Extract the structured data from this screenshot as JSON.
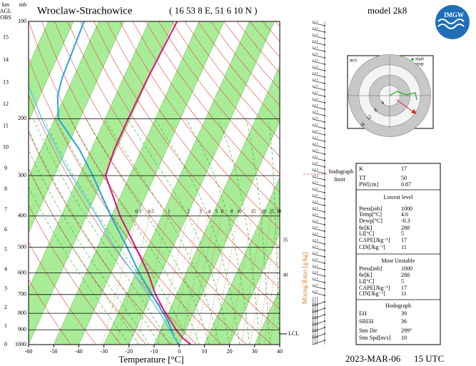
{
  "header": {
    "station": "Wroclaw-Strachowice",
    "coords": "( 16 53 8 E, 51 6 10 N )",
    "model": "model 2k8",
    "date": "2023-MAR-06",
    "time": "15 UTC"
  },
  "chart_data": {
    "type": "skewt",
    "x_label": "Temperature [°C]",
    "y_label": "mb",
    "km_label": [
      "km",
      "AGL",
      "OBS"
    ],
    "xlim": [
      -60,
      40
    ],
    "xticks": [
      -60,
      -50,
      -40,
      -30,
      -20,
      -10,
      0,
      10,
      20,
      30,
      40
    ],
    "ylim": [
      1000,
      100
    ],
    "yticks": [
      100,
      200,
      300,
      400,
      500,
      600,
      700,
      800,
      900,
      1000
    ],
    "log_scale": true,
    "km_ticks": [
      0,
      1,
      2,
      3,
      4,
      5,
      6,
      7,
      8,
      9,
      10,
      11,
      12,
      13,
      14,
      15
    ],
    "mixing_ratio_label": "Mixing Ratio [g/kg]",
    "mixing_ratios": [
      0.3,
      0.5,
      1,
      2,
      3,
      4,
      5,
      6,
      8,
      10,
      15,
      20,
      25,
      30,
      35,
      40
    ],
    "annotations": {
      "hodograph_limit": [
        "hodograph",
        "limit"
      ],
      "lcl": "LCL"
    },
    "series": [
      {
        "color": "#e0107a",
        "pressure": [
          1000,
          950,
          900,
          850,
          800,
          700,
          600,
          500,
          400,
          300,
          250,
          200,
          150,
          100
        ],
        "values": [
          4.6,
          -0.2,
          -3.9,
          -7.3,
          -11.1,
          -18.4,
          -25.3,
          -34.8,
          -46.6,
          -59.6,
          -60.8,
          -60.8,
          -60.3,
          -58.8
        ]
      },
      {
        "color": "#2aa0e0",
        "pressure": [
          1000,
          950,
          900,
          850,
          700,
          600,
          500,
          400,
          300,
          250,
          200,
          170,
          150,
          100
        ],
        "values": [
          -0.3,
          -3.3,
          -5.9,
          -8.4,
          -19.8,
          -28.8,
          -38.2,
          -50.3,
          -64.7,
          -74.5,
          -88.6,
          -93,
          -94.4,
          -95.8
        ]
      },
      {
        "color": "#5cc8f0",
        "pressure": [
          985,
          804,
          592,
          496,
          415,
          339,
          276,
          204,
          157
        ],
        "values": [
          -1.3,
          -12.9,
          -32,
          -43.6,
          -53.7,
          -65.9,
          -78.1,
          -94.3,
          -106.7
        ]
      }
    ]
  },
  "hodograph": {
    "unit": "m/s",
    "legend": [
      "start",
      "stop"
    ],
    "rings": [
      4,
      8,
      12,
      16
    ]
  },
  "tables": {
    "indices": [
      [
        "K",
        17
      ],
      [
        "TT",
        50
      ],
      [
        "PW[cm]",
        0.87
      ]
    ],
    "lowest_level": {
      "title": "Lowest level",
      "rows": [
        [
          "Press[mb]",
          1000
        ],
        [
          "Temp[°C]",
          4.6
        ],
        [
          "Dewp[°C]",
          -0.3
        ],
        [
          "θe[K]",
          288
        ],
        [
          "LI[°C]",
          5
        ],
        [
          "CAPE[Jkg⁻¹]",
          17
        ],
        [
          "CIN[Jkg⁻¹]",
          11
        ]
      ]
    },
    "most_unstable": {
      "title": "Most Unstable",
      "rows": [
        [
          "Press[mb]",
          1000
        ],
        [
          "θe[K]",
          288
        ],
        [
          "LI[°C]",
          5
        ],
        [
          "CAPE[Jkg⁻¹]",
          17
        ],
        [
          "CIN[Jkg⁻¹]",
          11
        ]
      ]
    },
    "hodograph": {
      "title": "Hodograph",
      "rows": [
        [
          "EH",
          39
        ],
        [
          "SREH",
          36
        ],
        [
          "Stm Dir",
          "299°"
        ],
        [
          "Stm Spd[m/s]",
          10
        ]
      ]
    }
  }
}
